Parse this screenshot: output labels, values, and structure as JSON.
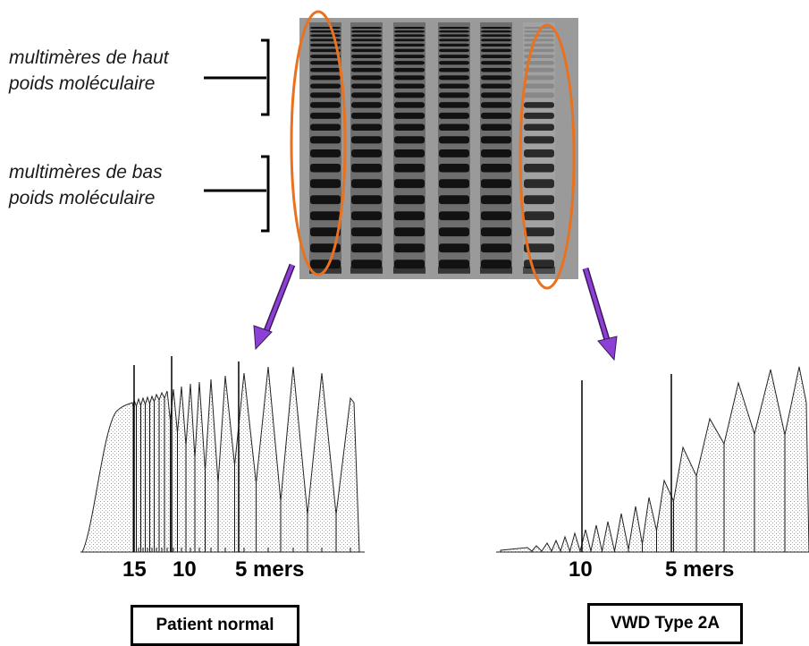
{
  "labels": {
    "high_mw_line1": "multimères de haut",
    "high_mw_line2": "poids moléculaire",
    "low_mw_line1": "multimères de bas",
    "low_mw_line2": "poids moléculaire"
  },
  "left_plot": {
    "tick_15": "15",
    "tick_10": "10",
    "tick_5": "5 mers",
    "caption": "Patient normal"
  },
  "right_plot": {
    "tick_10": "10",
    "tick_5": "5 mers",
    "caption": "VWD Type 2A"
  },
  "colors": {
    "ellipse": "#e8721f",
    "arrow": "#8e3fd6",
    "gel_bg": "#8a8a8a",
    "band": "#141414"
  }
}
